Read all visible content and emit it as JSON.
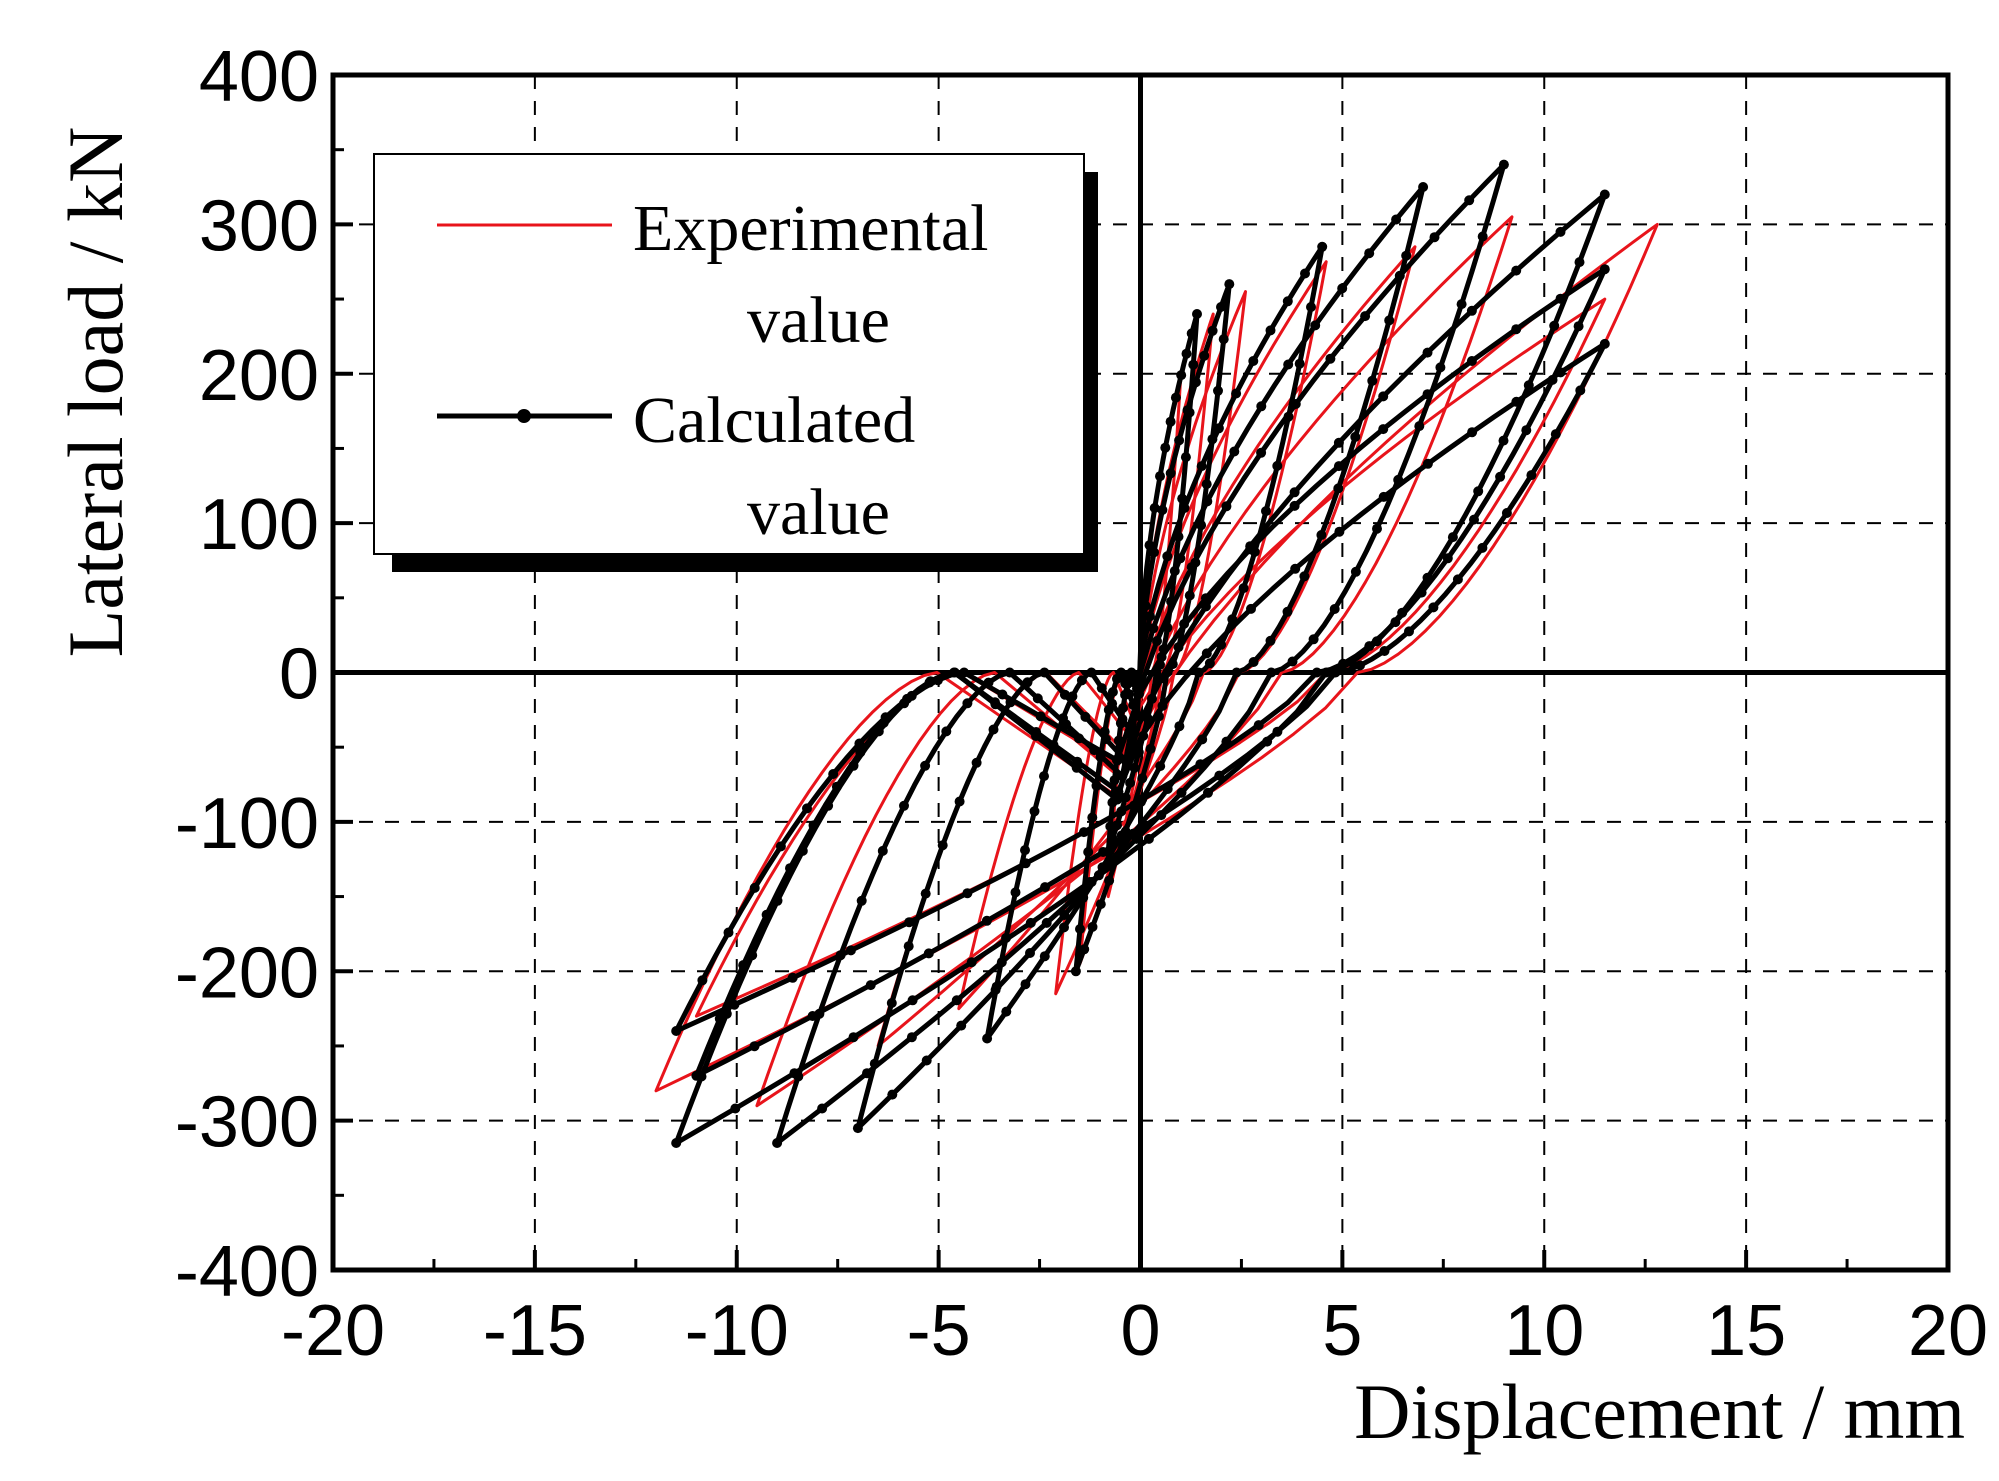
{
  "chart_data": {
    "type": "line",
    "xlabel": "Displacement / mm",
    "ylabel": "Lateral load / kN",
    "xlim": [
      -20,
      20
    ],
    "ylim": [
      -400,
      400
    ],
    "xticks": [
      -20,
      -15,
      -10,
      -5,
      0,
      5,
      10,
      15,
      20
    ],
    "yticks": [
      -400,
      -300,
      -200,
      -100,
      0,
      100,
      200,
      300,
      400
    ],
    "grid": true,
    "legend": {
      "position": "top-left",
      "entries": [
        {
          "line1": "Experimental",
          "line2": "value"
        },
        {
          "line1": "Calculated",
          "line2": "value"
        }
      ]
    },
    "series": [
      {
        "name": "Experimental value",
        "color": "#e8141b",
        "marker": false,
        "cycles": [
          {
            "pos_peak": [
              1.0,
              200
            ],
            "neg_peak": [
              -0.8,
              -150
            ]
          },
          {
            "pos_peak": [
              1.8,
              240
            ],
            "neg_peak": [
              -1.5,
              -195
            ]
          },
          {
            "pos_peak": [
              2.6,
              255
            ],
            "neg_peak": [
              -2.1,
              -215
            ]
          },
          {
            "pos_peak": [
              4.6,
              275
            ],
            "neg_peak": [
              -4.5,
              -225
            ]
          },
          {
            "pos_peak": [
              6.8,
              285
            ],
            "neg_peak": [
              -6.5,
              -250
            ]
          },
          {
            "pos_peak": [
              9.2,
              305
            ],
            "neg_peak": [
              -9.5,
              -290
            ]
          },
          {
            "pos_peak": [
              11.5,
              250
            ],
            "neg_peak": [
              -11.0,
              -230
            ]
          },
          {
            "pos_peak": [
              12.8,
              300
            ],
            "neg_peak": [
              -12.0,
              -280
            ]
          }
        ]
      },
      {
        "name": "Calculated value",
        "color": "#000000",
        "marker": true,
        "cycles": [
          {
            "pos_peak": [
              1.4,
              240
            ],
            "neg_peak": [
              -0.8,
              -120
            ]
          },
          {
            "pos_peak": [
              2.2,
              260
            ],
            "neg_peak": [
              -1.6,
              -200
            ]
          },
          {
            "pos_peak": [
              4.5,
              285
            ],
            "neg_peak": [
              -3.8,
              -245
            ]
          },
          {
            "pos_peak": [
              7.0,
              325
            ],
            "neg_peak": [
              -7.0,
              -305
            ]
          },
          {
            "pos_peak": [
              9.0,
              340
            ],
            "neg_peak": [
              -9.0,
              -315
            ]
          },
          {
            "pos_peak": [
              11.5,
              270
            ],
            "neg_peak": [
              -11.5,
              -240
            ]
          },
          {
            "pos_peak": [
              11.5,
              320
            ],
            "neg_peak": [
              -11.5,
              -315
            ]
          },
          {
            "pos_peak": [
              11.5,
              220
            ],
            "neg_peak": [
              -11.0,
              -270
            ]
          }
        ]
      }
    ]
  }
}
